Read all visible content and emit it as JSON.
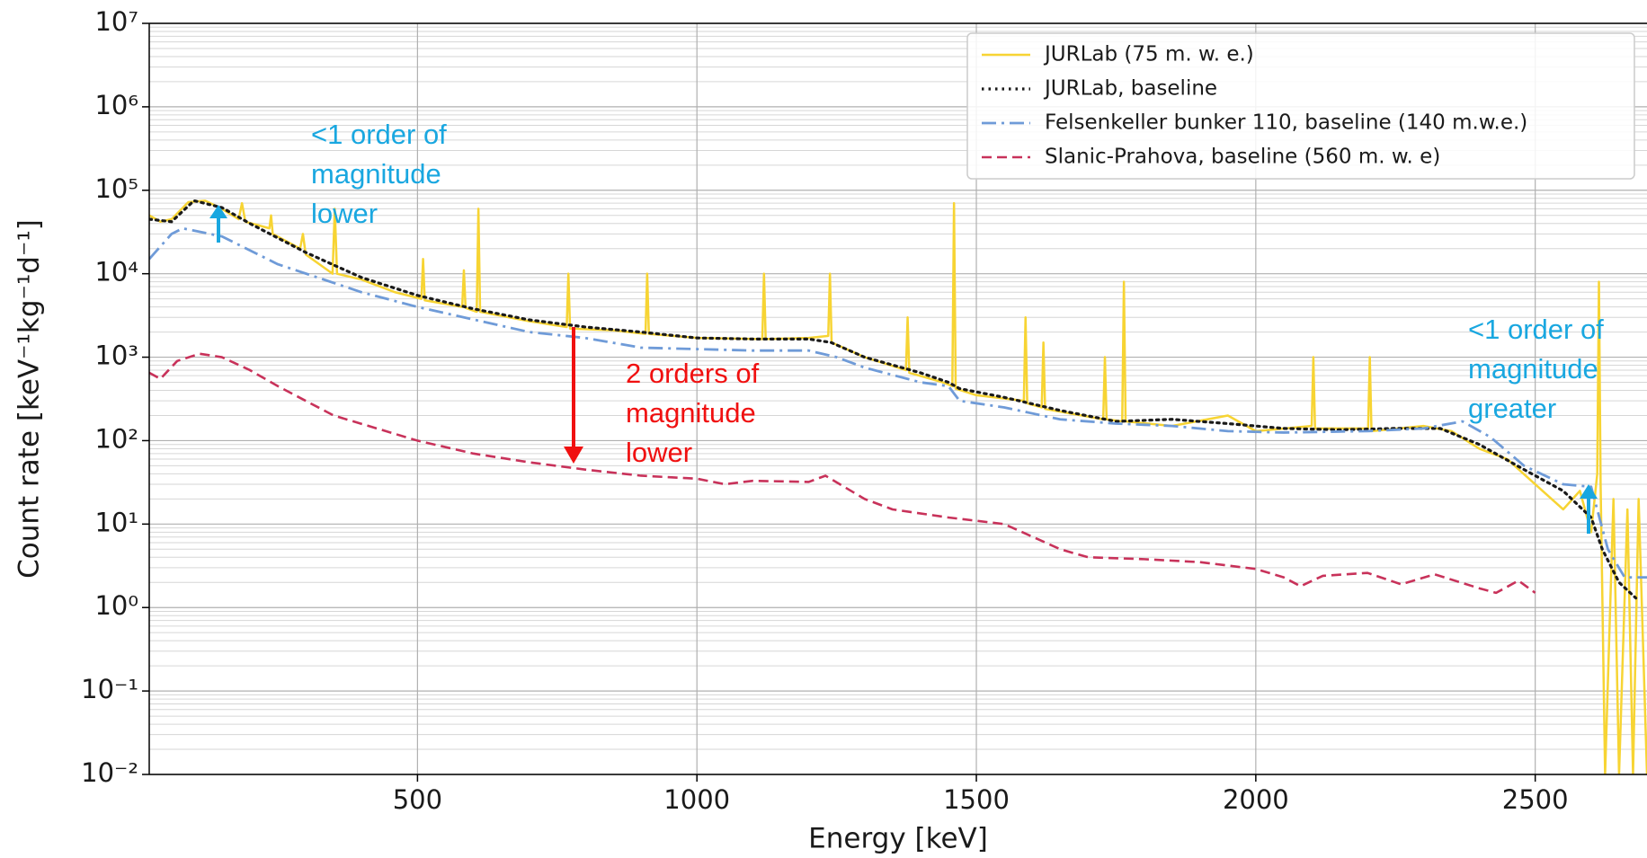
{
  "chart_data": {
    "type": "line",
    "x_label": "Energy [keV]",
    "y_label": "Count rate [keV⁻¹kg⁻¹d⁻¹]",
    "log_y": true,
    "grid": true,
    "minor_grid": true,
    "legend": "upper right",
    "xlim": [
      20,
      2700
    ],
    "xticks": [
      500,
      1000,
      1500,
      2000,
      2500
    ],
    "ylim": [
      0.01,
      10000000
    ],
    "yticks": [
      {
        "value": 0.01,
        "label": "10⁻²"
      },
      {
        "value": 0.1,
        "label": "10⁻¹"
      },
      {
        "value": 1,
        "label": "10⁰"
      },
      {
        "value": 10,
        "label": "10¹"
      },
      {
        "value": 100,
        "label": "10²"
      },
      {
        "value": 1000,
        "label": "10³"
      },
      {
        "value": 10000,
        "label": "10⁴"
      },
      {
        "value": 100000,
        "label": "10⁵"
      },
      {
        "value": 1000000,
        "label": "10⁶"
      },
      {
        "value": 10000000,
        "label": "10⁷"
      }
    ],
    "series": [
      {
        "name": "JURLab (75 m. w. e.)",
        "color": "#f7d433",
        "linestyle": "solid",
        "x": [
          20,
          40,
          60,
          90,
          120,
          150,
          180,
          186,
          192,
          235,
          238,
          241,
          290,
          295,
          300,
          348,
          352,
          356,
          400,
          460,
          507,
          510,
          513,
          580,
          583,
          586,
          606,
          609,
          612,
          700,
          767,
          770,
          773,
          850,
          908,
          911,
          914,
          1000,
          1117,
          1120,
          1123,
          1200,
          1235,
          1238,
          1241,
          1300,
          1374,
          1377,
          1380,
          1440,
          1457,
          1460,
          1463,
          1500,
          1585,
          1588,
          1591,
          1617,
          1620,
          1623,
          1727,
          1730,
          1733,
          1761,
          1764,
          1767,
          1850,
          1950,
          2000,
          2100,
          2103,
          2106,
          2201,
          2204,
          2207,
          2300,
          2350,
          2400,
          2450,
          2500,
          2550,
          2580,
          2600,
          2611,
          2614,
          2617,
          2625,
          2640,
          2650,
          2665,
          2675,
          2685,
          2700
        ],
        "values": [
          50000,
          42000,
          45000,
          72000,
          75000,
          60000,
          45000,
          70000,
          42000,
          35000,
          50000,
          30000,
          20000,
          30000,
          17000,
          10000,
          60000,
          10000,
          8500,
          6000,
          5000,
          15000,
          4800,
          4000,
          11000,
          3900,
          3500,
          60000,
          3500,
          2700,
          2300,
          10000,
          2200,
          2100,
          1900,
          10000,
          1900,
          1700,
          1650,
          10000,
          1650,
          1700,
          1800,
          10000,
          1500,
          1000,
          700,
          3000,
          650,
          500,
          450,
          70000,
          420,
          350,
          300,
          3000,
          280,
          250,
          1500,
          240,
          180,
          1000,
          180,
          170,
          8000,
          170,
          150,
          200,
          130,
          150,
          1000,
          140,
          140,
          1000,
          130,
          150,
          130,
          80,
          60,
          30,
          15,
          25,
          8,
          40,
          8000,
          30,
          0.01,
          20,
          0.01,
          15,
          0.01,
          20,
          0.01
        ]
      },
      {
        "name": "JURLab, baseline",
        "color": "#1a1a1a",
        "linestyle": "dotted",
        "x": [
          20,
          60,
          100,
          150,
          200,
          300,
          400,
          500,
          600,
          700,
          800,
          900,
          1000,
          1100,
          1200,
          1240,
          1300,
          1400,
          1450,
          1470,
          1550,
          1650,
          1750,
          1850,
          1950,
          2050,
          2150,
          2250,
          2330,
          2400,
          2480,
          2550,
          2600,
          2620,
          2650,
          2680
        ],
        "values": [
          45000,
          42000,
          75000,
          62000,
          40000,
          18000,
          9000,
          5500,
          3800,
          2800,
          2300,
          2000,
          1700,
          1650,
          1650,
          1500,
          1000,
          650,
          500,
          420,
          330,
          230,
          170,
          180,
          160,
          140,
          135,
          140,
          140,
          90,
          45,
          25,
          12,
          5,
          2,
          1.3
        ]
      },
      {
        "name": "Felsenkeller bunker 110, baseline (140 m.w.e.)",
        "color": "#6f9bd8",
        "linestyle": "dashdot",
        "x": [
          20,
          60,
          80,
          150,
          250,
          400,
          500,
          700,
          800,
          900,
          1000,
          1100,
          1200,
          1250,
          1300,
          1400,
          1450,
          1470,
          1550,
          1650,
          1750,
          1850,
          1950,
          2050,
          2200,
          2300,
          2370,
          2420,
          2480,
          2550,
          2600,
          2630,
          2660,
          2700
        ],
        "values": [
          15000,
          30000,
          35000,
          28000,
          13000,
          6000,
          4000,
          2000,
          1700,
          1300,
          1250,
          1200,
          1200,
          1000,
          750,
          500,
          450,
          300,
          250,
          180,
          160,
          150,
          130,
          125,
          130,
          140,
          170,
          110,
          50,
          30,
          28,
          5,
          2.3,
          2.3
        ]
      },
      {
        "name": "Slanic-Prahova, baseline (560 m. w. e)",
        "color": "#c8325a",
        "linestyle": "dashed",
        "x": [
          20,
          40,
          70,
          110,
          150,
          200,
          250,
          350,
          500,
          600,
          700,
          800,
          900,
          1000,
          1050,
          1100,
          1200,
          1230,
          1300,
          1350,
          1450,
          1550,
          1650,
          1700,
          1800,
          1900,
          2000,
          2050,
          2080,
          2120,
          2200,
          2260,
          2320,
          2400,
          2430,
          2470,
          2500
        ],
        "values": [
          650,
          550,
          900,
          1100,
          1000,
          700,
          450,
          200,
          100,
          70,
          55,
          45,
          38,
          35,
          30,
          33,
          32,
          38,
          20,
          15,
          12,
          10,
          5,
          4,
          3.8,
          3.5,
          2.9,
          2.3,
          1.8,
          2.4,
          2.6,
          1.9,
          2.5,
          1.7,
          1.5,
          2.1,
          1.5
        ]
      }
    ],
    "annotations": [
      {
        "lines": [
          "<1 order of",
          "magnitude",
          "lower"
        ],
        "color": "#19a7e0"
      },
      {
        "lines": [
          "2 orders of",
          "magnitude",
          "lower"
        ],
        "color": "#f01010"
      },
      {
        "lines": [
          "<1 order of",
          "magnitude",
          "greater"
        ],
        "color": "#19a7e0"
      }
    ]
  }
}
